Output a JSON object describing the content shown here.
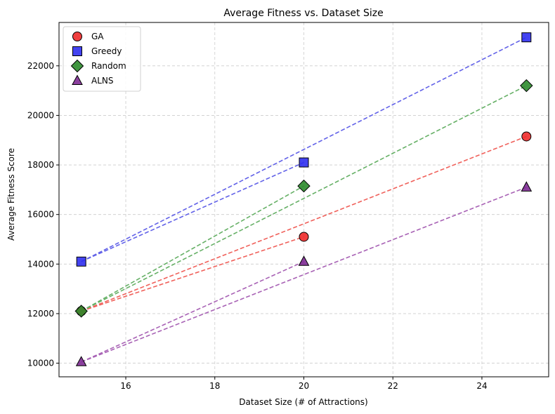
{
  "chart_data": {
    "type": "scatter",
    "title": "Average Fitness vs. Dataset Size",
    "xlabel": "Dataset Size (# of Attractions)",
    "ylabel": "Average Fitness Score",
    "xlim": [
      14.5,
      25.5
    ],
    "ylim": [
      9450,
      23750
    ],
    "xticks": [
      16,
      18,
      20,
      22,
      24
    ],
    "yticks": [
      10000,
      12000,
      14000,
      16000,
      18000,
      20000,
      22000
    ],
    "x_tick_labels": [
      "16",
      "18",
      "20",
      "22",
      "24"
    ],
    "y_tick_labels": [
      "10000",
      "12000",
      "14000",
      "16000",
      "18000",
      "20000",
      "22000"
    ],
    "grid": true,
    "legend_position": "top-left",
    "series": [
      {
        "name": "GA",
        "marker": "circle",
        "color": "#ee2a2a",
        "line_color": "#f0605a",
        "points": [
          [
            15,
            12100
          ],
          [
            20,
            15100
          ],
          [
            25,
            19150
          ]
        ]
      },
      {
        "name": "Greedy",
        "marker": "square",
        "color": "#2f2fef",
        "line_color": "#6262e8",
        "points": [
          [
            15,
            14100
          ],
          [
            20,
            18100
          ],
          [
            25,
            23150
          ]
        ]
      },
      {
        "name": "Random",
        "marker": "diamond",
        "color": "#2b8a2b",
        "line_color": "#66b066",
        "points": [
          [
            15,
            12100
          ],
          [
            20,
            17150
          ],
          [
            25,
            21200
          ]
        ]
      },
      {
        "name": "ALNS",
        "marker": "triangle",
        "color": "#7e2b93",
        "line_color": "#a862b5",
        "points": [
          [
            15,
            10050
          ],
          [
            20,
            14100
          ],
          [
            25,
            17100
          ]
        ]
      }
    ]
  }
}
